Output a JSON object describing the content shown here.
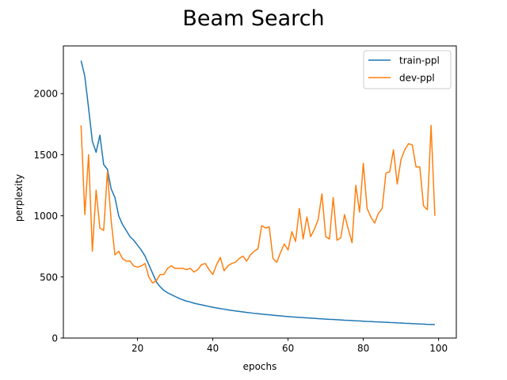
{
  "chart_data": {
    "type": "line",
    "title": "Beam Search",
    "xlabel": "epochs",
    "ylabel": "perplexity",
    "xlim": [
      0.3,
      104.7
    ],
    "ylim": [
      0,
      2390
    ],
    "xticks": [
      20,
      40,
      60,
      80,
      100
    ],
    "yticks": [
      0,
      500,
      1000,
      1500,
      2000
    ],
    "grid": false,
    "legend_position": "top-right",
    "x": [
      5,
      6,
      7,
      8,
      9,
      10,
      11,
      12,
      13,
      14,
      15,
      16,
      17,
      18,
      19,
      20,
      21,
      22,
      23,
      24,
      25,
      26,
      27,
      28,
      29,
      30,
      31,
      32,
      33,
      34,
      35,
      36,
      37,
      38,
      39,
      40,
      41,
      42,
      43,
      44,
      45,
      46,
      47,
      48,
      49,
      50,
      51,
      52,
      53,
      54,
      55,
      56,
      57,
      58,
      59,
      60,
      61,
      62,
      63,
      64,
      65,
      66,
      67,
      68,
      69,
      70,
      71,
      72,
      73,
      74,
      75,
      76,
      77,
      78,
      79,
      80,
      81,
      82,
      83,
      84,
      85,
      86,
      87,
      88,
      89,
      90,
      91,
      92,
      93,
      94,
      95,
      96,
      97,
      98,
      99
    ],
    "series": [
      {
        "name": "train-ppl",
        "color": "#1f77b4",
        "values": [
          2270,
          2140,
          1880,
          1610,
          1520,
          1660,
          1420,
          1380,
          1220,
          1150,
          1000,
          930,
          880,
          830,
          800,
          760,
          720,
          670,
          600,
          530,
          460,
          420,
          390,
          370,
          355,
          340,
          325,
          313,
          302,
          295,
          285,
          278,
          272,
          265,
          258,
          252,
          246,
          241,
          236,
          231,
          226,
          222,
          218,
          214,
          210,
          206,
          202,
          199,
          196,
          193,
          190,
          187,
          184,
          181,
          178,
          176,
          173,
          171,
          169,
          167,
          165,
          163,
          161,
          159,
          157,
          155,
          153,
          152,
          150,
          148,
          146,
          145,
          143,
          141,
          140,
          138,
          136,
          135,
          133,
          132,
          130,
          129,
          127,
          126,
          124,
          123,
          121,
          120,
          118,
          117,
          115,
          114,
          112,
          111,
          110
        ]
      },
      {
        "name": "dev-ppl",
        "color": "#ff7f0e",
        "values": [
          1740,
          1010,
          1500,
          710,
          1210,
          900,
          880,
          1360,
          960,
          680,
          710,
          650,
          630,
          630,
          590,
          580,
          590,
          610,
          500,
          450,
          470,
          520,
          520,
          570,
          590,
          570,
          570,
          570,
          560,
          570,
          540,
          560,
          600,
          610,
          560,
          520,
          600,
          660,
          550,
          590,
          610,
          620,
          650,
          670,
          630,
          680,
          710,
          730,
          920,
          900,
          910,
          650,
          620,
          700,
          770,
          720,
          870,
          790,
          1060,
          810,
          990,
          830,
          890,
          970,
          1180,
          830,
          810,
          1150,
          800,
          820,
          1010,
          890,
          780,
          1250,
          1030,
          1430,
          1060,
          990,
          940,
          1020,
          1060,
          1350,
          1360,
          1540,
          1260,
          1460,
          1540,
          1590,
          1580,
          1400,
          1400,
          1080,
          1050,
          1740,
          1000
        ]
      }
    ]
  }
}
